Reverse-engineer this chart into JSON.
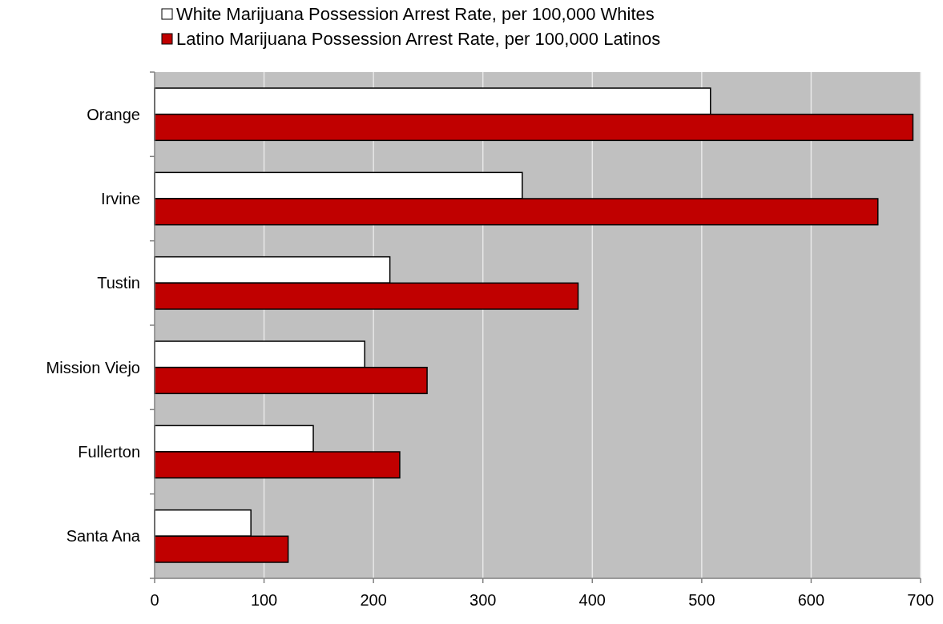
{
  "chart_data": {
    "type": "bar",
    "orientation": "horizontal",
    "categories": [
      "Orange",
      "Irvine",
      "Tustin",
      "Mission Viejo",
      "Fullerton",
      "Santa Ana"
    ],
    "series": [
      {
        "name": "White Marijuana Possession Arrest Rate, per 100,000 Whites",
        "color": "#ffffff",
        "values": [
          508,
          336,
          215,
          192,
          145,
          88
        ]
      },
      {
        "name": "Latino Marijuana Possession Arrest Rate, per 100,000 Latinos",
        "color": "#c00000",
        "values": [
          693,
          661,
          387,
          249,
          224,
          122
        ]
      }
    ],
    "xlim": [
      0,
      700
    ],
    "xticks": [
      0,
      100,
      200,
      300,
      400,
      500,
      600,
      700
    ],
    "grid": "x",
    "legend": "top"
  }
}
